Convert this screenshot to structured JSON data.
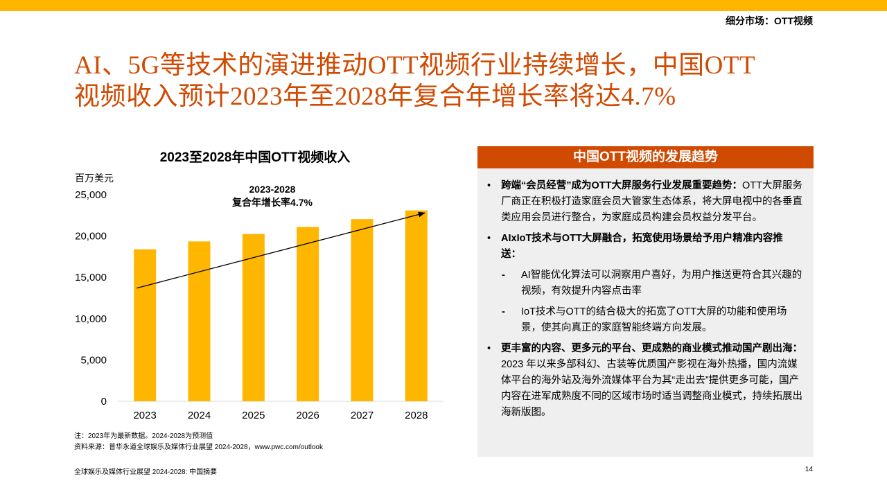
{
  "header": {
    "section_label": "细分市场：OTT视频",
    "headline_line1": "AI、5G等技术的演进推动OTT视频行业持续增长，中国OTT",
    "headline_line2": "视频收入预计2023年至2028年复合年增长率将达4.7%"
  },
  "chart_data": {
    "type": "bar",
    "title": "2023至2028年中国OTT视频收入",
    "ylabel": "百万美元",
    "xlabel": "",
    "categories": [
      "2023",
      "2024",
      "2025",
      "2026",
      "2027",
      "2028"
    ],
    "values": [
      18400,
      19350,
      20250,
      21100,
      22050,
      23100
    ],
    "ylim": [
      0,
      25000
    ],
    "yticks": [
      0,
      5000,
      10000,
      15000,
      20000,
      25000
    ],
    "ytick_labels": [
      "0",
      "5,000",
      "10,000",
      "15,000",
      "20,000",
      "25,000"
    ],
    "bar_color": "#FFB600",
    "grid": false,
    "annotation": {
      "line1": "2023-2028",
      "line2": "复合年增长率4.7%"
    },
    "trend_arrow": {
      "from": {
        "x": "2023",
        "y": 13700
      },
      "to": {
        "x": "2028",
        "y": 22800
      }
    }
  },
  "chart_notes": {
    "note": "注：2023年为最新数据。2024-2028为预测值",
    "source": "资料来源：普华永道全球娱乐及媒体行业展望 2024-2028，www.pwc.com/outlook"
  },
  "panel": {
    "title": "中国OTT视频的发展趋势",
    "bullet_char": "•",
    "dash_char": "-",
    "b1_bold": "跨端“会员经营”成为OTT大屏服务行业发展重要趋势：",
    "b1_text": "OTT大屏服务厂商正在积极打造家庭会员大管家生态体系，将大屏电视中的各垂直类应用会员进行整合，为家庭成员构建会员权益分发平台。",
    "b2_bold": "AIxIoT技术与OTT大屏融合，拓宽使用场景给予用户精准内容推送：",
    "b2_sub1": "AI智能优化算法可以洞察用户喜好，为用户推送更符合其兴趣的视频，有效提升内容点击率",
    "b2_sub2": "IoT技术与OTT的结合极大的拓宽了OTT大屏的功能和使用场景，使其向真正的家庭智能终端方向发展。",
    "b3_bold": "更丰富的内容、更多元的平台、更成熟的商业模式推动国产剧出海：",
    "b3_text": "2023 年以来多部科幻、古装等优质国产影视在海外热播，国内流媒体平台的海外站及海外流媒体平台为其“走出去”提供更多可能，国产内容在进军成熟度不同的区域市场时适当调整商业模式，持续拓展出海新版图。"
  },
  "footer": {
    "left": "全球娱乐及媒体行业展望 2024-2028: 中国摘要",
    "page": "14"
  },
  "colors": {
    "accent": "#D04A02",
    "brand_yellow": "#FFB600",
    "panel_bg": "#EFEFEF"
  }
}
